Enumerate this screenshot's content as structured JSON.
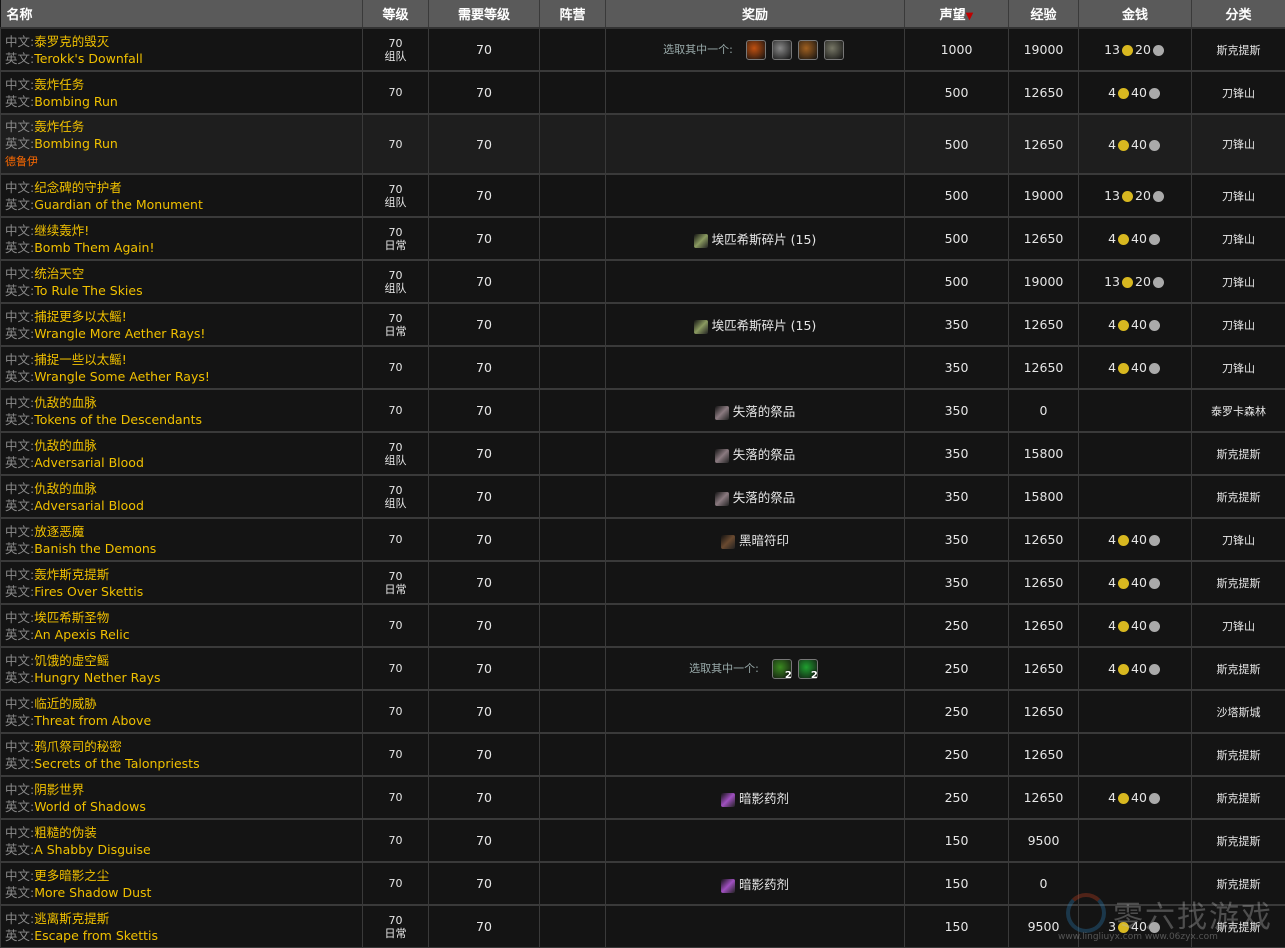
{
  "headers": {
    "name": "名称",
    "level": "等级",
    "req_level": "需要等级",
    "faction": "阵营",
    "reward": "奖励",
    "rep": "声望",
    "xp": "经验",
    "money": "金钱",
    "category": "分类"
  },
  "sort_icon": "triangle-down-icon",
  "labels": {
    "cn": "中文:",
    "en": "英文:",
    "choose": "选取其中一个:"
  },
  "colors": {
    "quest": "#f0c000",
    "class": "#ff6a00",
    "header_bg": "#5a5a5a",
    "row_bg": "#141414"
  },
  "rows": [
    {
      "cn": "泰罗克的毁灭",
      "en": "Terokk's Downfall",
      "level": "70",
      "type": "组队",
      "req": "70",
      "reward_choice": [
        {
          "icon": "fire-weapon-icon",
          "color": "#c05010"
        },
        {
          "icon": "sword-icon",
          "color": "#888"
        },
        {
          "icon": "amulet-icon",
          "color": "#a06020"
        },
        {
          "icon": "spear-icon",
          "color": "#776"
        }
      ],
      "rep": "1000",
      "xp": "19000",
      "gold": "13",
      "silver": "20",
      "cat": "斯克提斯"
    },
    {
      "cn": "轰炸任务",
      "en": "Bombing Run",
      "level": "70",
      "req": "70",
      "rep": "500",
      "xp": "12650",
      "gold": "4",
      "silver": "40",
      "cat": "刀锋山"
    },
    {
      "cn": "轰炸任务",
      "en": "Bombing Run",
      "cls": "德鲁伊",
      "level": "70",
      "req": "70",
      "rep": "500",
      "xp": "12650",
      "gold": "4",
      "silver": "40",
      "cat": "刀锋山"
    },
    {
      "cn": "纪念碑的守护者",
      "en": "Guardian of the Monument",
      "level": "70",
      "type": "组队",
      "req": "70",
      "rep": "500",
      "xp": "19000",
      "gold": "13",
      "silver": "20",
      "cat": "刀锋山"
    },
    {
      "cn": "继续轰炸!",
      "en": "Bomb Them Again!",
      "level": "70",
      "type": "日常",
      "req": "70",
      "reward": {
        "icon": "apexis-shard-icon",
        "color": "#8a9a60",
        "text": "埃匹希斯碎片 (15)"
      },
      "rep": "500",
      "xp": "12650",
      "gold": "4",
      "silver": "40",
      "cat": "刀锋山"
    },
    {
      "cn": "统治天空",
      "en": "To Rule The Skies",
      "level": "70",
      "type": "组队",
      "req": "70",
      "rep": "500",
      "xp": "19000",
      "gold": "13",
      "silver": "20",
      "cat": "刀锋山"
    },
    {
      "cn": "捕捉更多以太鳐!",
      "en": "Wrangle More Aether Rays!",
      "level": "70",
      "type": "日常",
      "req": "70",
      "reward": {
        "icon": "apexis-shard-icon",
        "color": "#8a9a60",
        "text": "埃匹希斯碎片 (15)"
      },
      "rep": "350",
      "xp": "12650",
      "gold": "4",
      "silver": "40",
      "cat": "刀锋山"
    },
    {
      "cn": "捕捉一些以太鳐!",
      "en": "Wrangle Some Aether Rays!",
      "level": "70",
      "req": "70",
      "rep": "350",
      "xp": "12650",
      "gold": "4",
      "silver": "40",
      "cat": "刀锋山"
    },
    {
      "cn": "仇敌的血脉",
      "en": "Tokens of the Descendants",
      "level": "70",
      "req": "70",
      "reward": {
        "icon": "lost-offering-icon",
        "color": "#8a7a80",
        "text": "失落的祭品"
      },
      "rep": "350",
      "xp": "0",
      "cat": "泰罗卡森林"
    },
    {
      "cn": "仇敌的血脉",
      "en": "Adversarial Blood",
      "level": "70",
      "type": "组队",
      "req": "70",
      "reward": {
        "icon": "lost-offering-icon",
        "color": "#8a7a80",
        "text": "失落的祭品"
      },
      "rep": "350",
      "xp": "15800",
      "cat": "斯克提斯"
    },
    {
      "cn": "仇敌的血脉",
      "en": "Adversarial Blood",
      "level": "70",
      "type": "组队",
      "req": "70",
      "reward": {
        "icon": "lost-offering-icon",
        "color": "#8a7a80",
        "text": "失落的祭品"
      },
      "rep": "350",
      "xp": "15800",
      "cat": "斯克提斯"
    },
    {
      "cn": "放逐恶魔",
      "en": "Banish the Demons",
      "level": "70",
      "req": "70",
      "reward": {
        "icon": "dark-rune-icon",
        "color": "#6a4a30",
        "text": "黑暗符印"
      },
      "rep": "350",
      "xp": "12650",
      "gold": "4",
      "silver": "40",
      "cat": "刀锋山"
    },
    {
      "cn": "轰炸斯克提斯",
      "en": "Fires Over Skettis",
      "level": "70",
      "type": "日常",
      "req": "70",
      "rep": "350",
      "xp": "12650",
      "gold": "4",
      "silver": "40",
      "cat": "斯克提斯"
    },
    {
      "cn": "埃匹希斯圣物",
      "en": "An Apexis Relic",
      "level": "70",
      "req": "70",
      "rep": "250",
      "xp": "12650",
      "gold": "4",
      "silver": "40",
      "cat": "刀锋山"
    },
    {
      "cn": "饥饿的虚空鳐",
      "en": "Hungry Nether Rays",
      "level": "70",
      "req": "70",
      "reward_choice": [
        {
          "icon": "green-potion-icon",
          "color": "#3a8a20",
          "count": "2"
        },
        {
          "icon": "green-potion-icon",
          "color": "#20a030",
          "count": "2"
        }
      ],
      "rep": "250",
      "xp": "12650",
      "gold": "4",
      "silver": "40",
      "cat": "斯克提斯"
    },
    {
      "cn": "临近的威胁",
      "en": "Threat from Above",
      "level": "70",
      "req": "70",
      "rep": "250",
      "xp": "12650",
      "cat": "沙塔斯城"
    },
    {
      "cn": "鸦爪祭司的秘密",
      "en": "Secrets of the Talonpriests",
      "level": "70",
      "req": "70",
      "rep": "250",
      "xp": "12650",
      "cat": "斯克提斯"
    },
    {
      "cn": "阴影世界",
      "en": "World of Shadows",
      "level": "70",
      "req": "70",
      "reward": {
        "icon": "shadow-elixir-icon",
        "color": "#a050c0",
        "text": "暗影药剂"
      },
      "rep": "250",
      "xp": "12650",
      "gold": "4",
      "silver": "40",
      "cat": "斯克提斯"
    },
    {
      "cn": "粗糙的伪装",
      "en": "A Shabby Disguise",
      "level": "70",
      "req": "70",
      "rep": "150",
      "xp": "9500",
      "cat": "斯克提斯"
    },
    {
      "cn": "更多暗影之尘",
      "en": "More Shadow Dust",
      "level": "70",
      "req": "70",
      "reward": {
        "icon": "shadow-elixir-icon",
        "color": "#a050c0",
        "text": "暗影药剂"
      },
      "rep": "150",
      "xp": "0",
      "cat": "斯克提斯"
    },
    {
      "cn": "逃离斯克提斯",
      "en": "Escape from Skettis",
      "level": "70",
      "type": "日常",
      "req": "70",
      "rep": "150",
      "xp": "9500",
      "gold": "3",
      "silver": "40",
      "cat": "斯克提斯"
    }
  ],
  "watermark": {
    "text": "零六找游戏",
    "url": "www.lingliuyx.com  www.06zyx.com"
  }
}
